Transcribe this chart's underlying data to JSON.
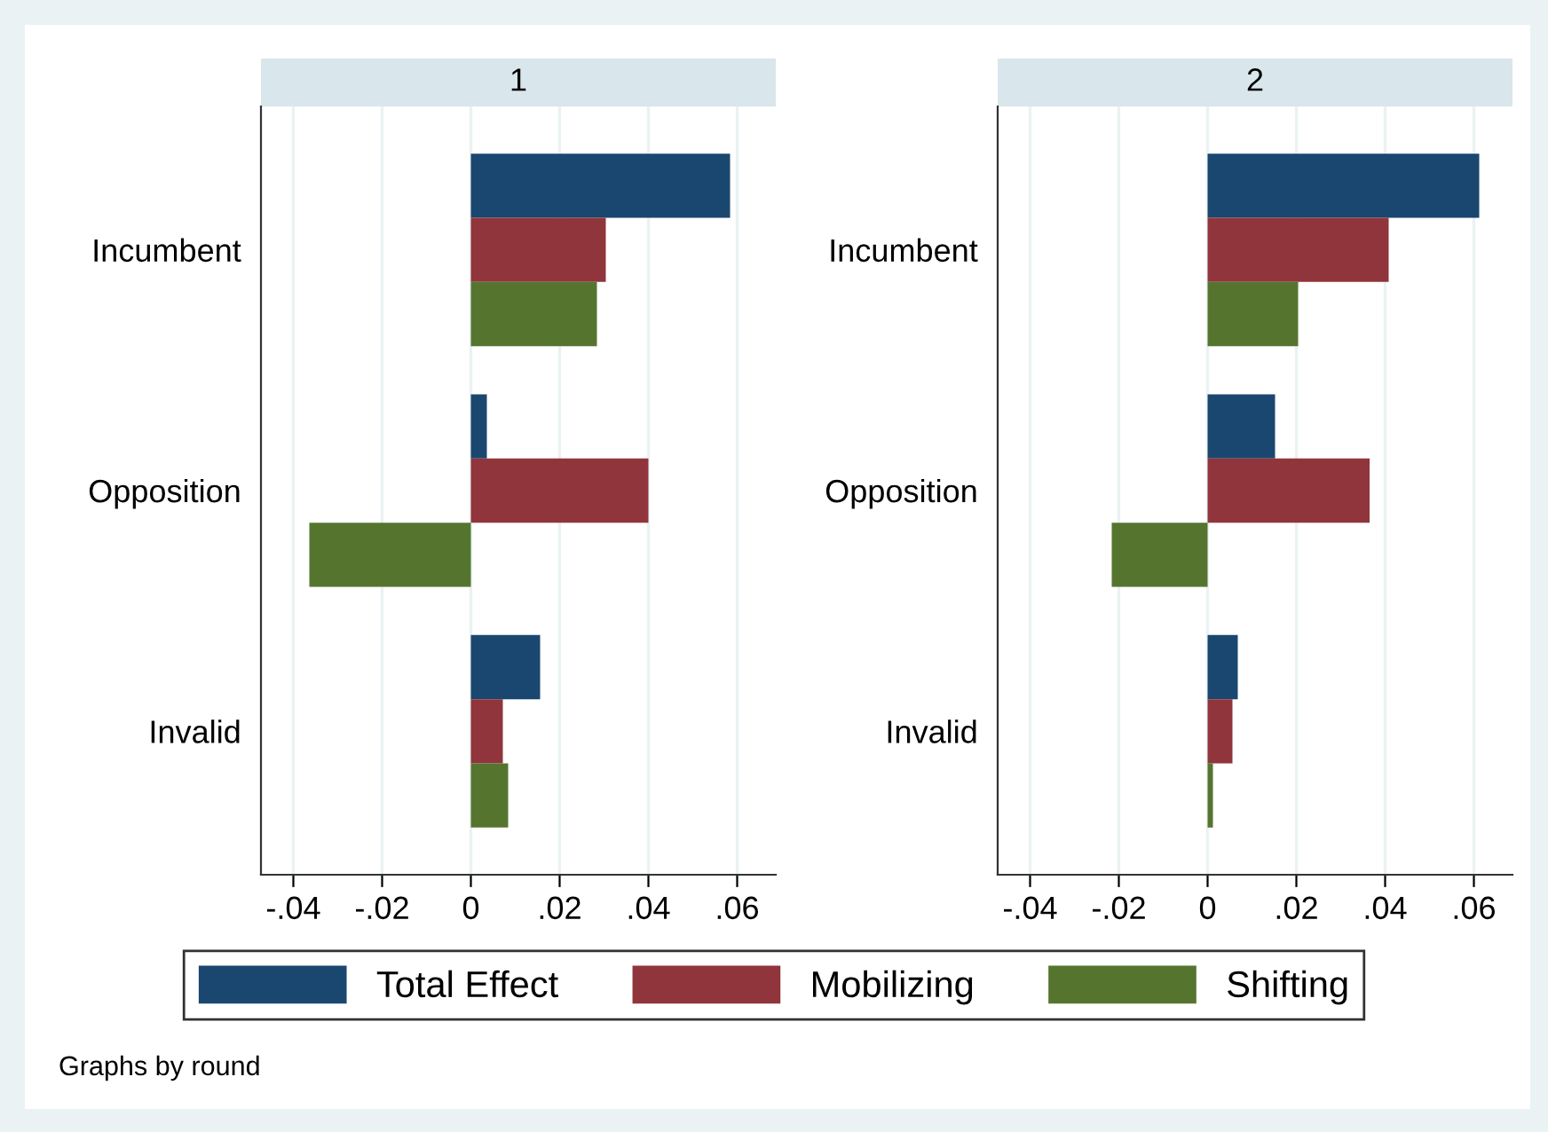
{
  "chart_data": [
    {
      "type": "bar",
      "orientation": "horizontal",
      "title": "1",
      "categories": [
        "Incumbent",
        "Opposition",
        "Invalid"
      ],
      "series": [
        {
          "name": "Total Effect",
          "color": "#1a476f",
          "values": [
            0.0584,
            0.0036,
            0.0156
          ]
        },
        {
          "name": "Mobilizing",
          "color": "#90353b",
          "values": [
            0.0304,
            0.04,
            0.0072
          ]
        },
        {
          "name": "Shifting",
          "color": "#55752f",
          "values": [
            0.0284,
            -0.0364,
            0.0084
          ]
        }
      ],
      "xlim": [
        -0.0473,
        0.0687
      ],
      "xticks": [
        {
          "value": -0.04,
          "label": "-.04"
        },
        {
          "value": -0.02,
          "label": "-.02"
        },
        0,
        {
          "value": 0.02,
          "label": ".02"
        },
        {
          "value": 0.04,
          "label": ".04"
        },
        {
          "value": 0.06,
          "label": ".06"
        }
      ],
      "grid": "x",
      "legend": "bottom",
      "annotations": [
        "Graphs by round"
      ]
    },
    {
      "type": "bar",
      "orientation": "horizontal",
      "title": "2",
      "categories": [
        "Incumbent",
        "Opposition",
        "Invalid"
      ],
      "series": [
        {
          "color": "#1a476f",
          "values": [
            0.0612,
            0.0152,
            0.0068
          ]
        },
        {
          "color": "#90353b",
          "values": [
            0.0408,
            0.0365,
            0.0056
          ]
        },
        {
          "color": "#55752f",
          "values": [
            0.0204,
            -0.0216,
            0.0012
          ]
        }
      ],
      "xlim": [
        -0.0473,
        0.0687
      ],
      "xticks": [
        {
          "value": -0.04,
          "label": "-.04"
        },
        {
          "value": -0.02,
          "label": "-.02"
        },
        0,
        {
          "value": 0.02,
          "label": ".02"
        },
        {
          "value": 0.04,
          "label": ".04"
        },
        {
          "value": 0.06,
          "label": ".06"
        }
      ],
      "grid": "x"
    }
  ]
}
